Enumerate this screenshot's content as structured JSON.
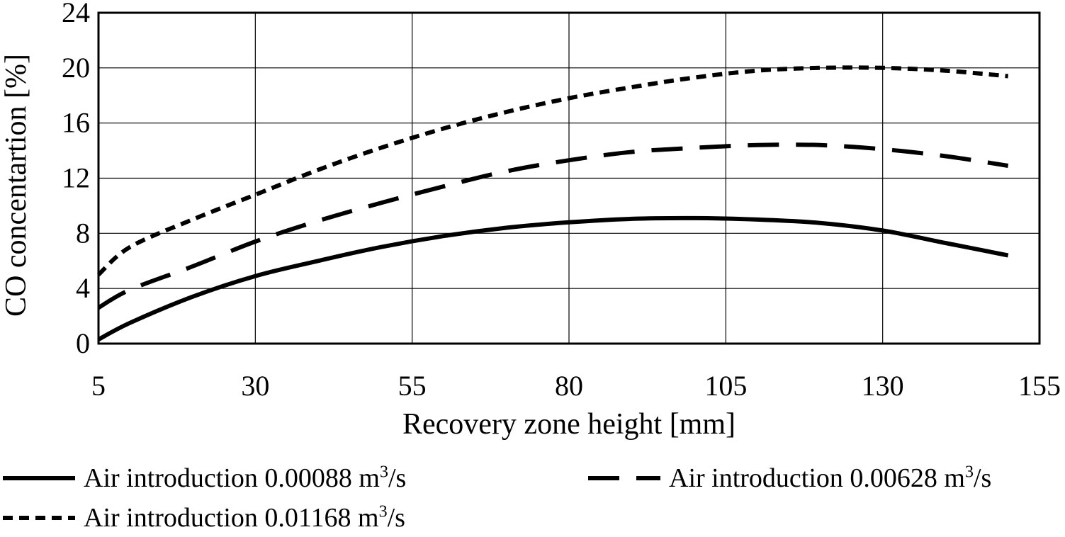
{
  "chart_data": {
    "type": "line",
    "xlabel": "Recovery zone height [mm]",
    "ylabel": "CO concentartion [%]",
    "xlim": [
      5,
      155
    ],
    "ylim": [
      0,
      24
    ],
    "xticks": [
      5,
      30,
      55,
      80,
      105,
      130,
      155
    ],
    "yticks": [
      0,
      4,
      8,
      12,
      16,
      20,
      24
    ],
    "grid": true,
    "legend_position": "bottom",
    "series": [
      {
        "name": "Air introduction 0.00088",
        "unit": "m3/s",
        "style": "solid",
        "x": [
          5,
          10,
          20,
          30,
          40,
          50,
          60,
          70,
          80,
          90,
          100,
          110,
          120,
          130,
          140,
          150
        ],
        "y": [
          0.3,
          1.5,
          3.4,
          4.9,
          6.0,
          7.0,
          7.8,
          8.4,
          8.8,
          9.05,
          9.1,
          9.0,
          8.75,
          8.2,
          7.3,
          6.4
        ]
      },
      {
        "name": "Air introduction 0.00628",
        "unit": "m3/s",
        "style": "long-dash",
        "x": [
          5,
          10,
          20,
          30,
          40,
          50,
          60,
          70,
          80,
          90,
          100,
          110,
          120,
          130,
          140,
          150
        ],
        "y": [
          2.6,
          3.9,
          5.6,
          7.4,
          8.9,
          10.2,
          11.4,
          12.5,
          13.3,
          13.9,
          14.2,
          14.4,
          14.4,
          14.1,
          13.6,
          12.9
        ]
      },
      {
        "name": "Air introduction 0.01168",
        "unit": "m3/s",
        "style": "short-dash",
        "x": [
          5,
          10,
          20,
          30,
          40,
          50,
          60,
          70,
          80,
          90,
          100,
          110,
          120,
          130,
          140,
          150
        ],
        "y": [
          5.0,
          7.0,
          9.0,
          10.8,
          12.6,
          14.2,
          15.6,
          16.8,
          17.8,
          18.6,
          19.3,
          19.8,
          20.0,
          20.0,
          19.8,
          19.4
        ]
      }
    ]
  },
  "legend": {
    "unit_base": "m",
    "unit_exp": "3",
    "unit_rest": "/s"
  }
}
